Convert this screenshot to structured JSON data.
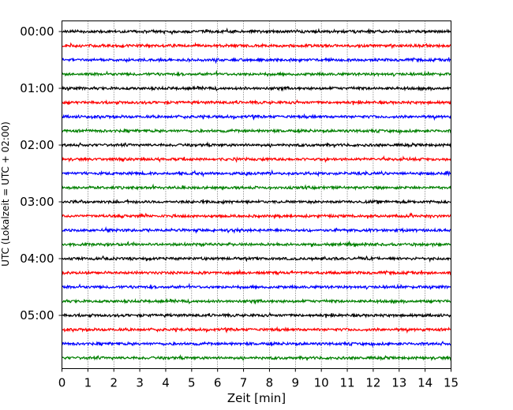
{
  "chart_data": {
    "type": "line",
    "title": "",
    "xlabel": "Zeit  [min]",
    "ylabel": "UTC (Lokalzeit = UTC + 02:00)",
    "xlim": [
      0,
      15
    ],
    "x_ticks": [
      "0",
      "1",
      "2",
      "3",
      "4",
      "5",
      "6",
      "7",
      "8",
      "9",
      "10",
      "11",
      "12",
      "13",
      "14",
      "15"
    ],
    "y_ticks": [
      "00:00",
      "01:00",
      "02:00",
      "03:00",
      "04:00",
      "05:00"
    ],
    "grid": "vertical dotted",
    "trace_interval_min": 15,
    "trace_colors": [
      "#000000",
      "#ff0000",
      "#0000ff",
      "#008000"
    ],
    "traces": [
      {
        "start": "00:00"
      },
      {
        "start": "00:15"
      },
      {
        "start": "00:30"
      },
      {
        "start": "00:45"
      },
      {
        "start": "01:00"
      },
      {
        "start": "01:15"
      },
      {
        "start": "01:30"
      },
      {
        "start": "01:45"
      },
      {
        "start": "02:00"
      },
      {
        "start": "02:15"
      },
      {
        "start": "02:30"
      },
      {
        "start": "02:45"
      },
      {
        "start": "03:00"
      },
      {
        "start": "03:15"
      },
      {
        "start": "03:30"
      },
      {
        "start": "03:45"
      },
      {
        "start": "04:00"
      },
      {
        "start": "04:15"
      },
      {
        "start": "04:30"
      },
      {
        "start": "04:45"
      },
      {
        "start": "05:00"
      },
      {
        "start": "05:15"
      },
      {
        "start": "05:30"
      },
      {
        "start": "05:45"
      }
    ]
  }
}
